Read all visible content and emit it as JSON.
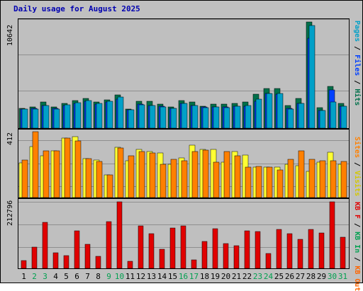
{
  "title": "Daily usage for August 2025",
  "colors": {
    "pages": "#00a0c8",
    "files": "#0040ff",
    "hits": "#00704a",
    "visits": "#ffff33",
    "sites": "#ff8000",
    "kb_in": "#00a050",
    "kb_out": "#ff6600",
    "kb_f": "#e00000",
    "weekend_label": "#00a050",
    "weekday_label": "#000000"
  },
  "legends": {
    "top": [
      "Pages",
      "Files",
      "Hits"
    ],
    "mid": [
      "Sites",
      "Visits"
    ],
    "bot": [
      "KB F",
      "KB In",
      "KB Out"
    ]
  },
  "chart_data": [
    {
      "type": "bar",
      "name": "hits-files-pages",
      "y_max_label": "10642",
      "ylim": [
        0,
        10642
      ],
      "categories": [
        "1",
        "2",
        "3",
        "4",
        "5",
        "6",
        "7",
        "8",
        "9",
        "10",
        "11",
        "12",
        "13",
        "14",
        "15",
        "16",
        "17",
        "18",
        "19",
        "20",
        "21",
        "22",
        "23",
        "24",
        "25",
        "26",
        "27",
        "28",
        "29",
        "30",
        "31"
      ],
      "weekend_days": [
        "2",
        "3",
        "9",
        "10",
        "16",
        "17",
        "23",
        "24",
        "30",
        "31"
      ],
      "series": [
        {
          "name": "Hits",
          "values": [
            1980,
            2100,
            2650,
            2150,
            2450,
            2800,
            2950,
            2600,
            2850,
            3350,
            1950,
            2700,
            2700,
            2400,
            2150,
            2800,
            2600,
            2200,
            2400,
            2400,
            2500,
            2650,
            3400,
            3950,
            3950,
            2300,
            2950,
            10642,
            2050,
            4200,
            2450
          ]
        },
        {
          "name": "Files",
          "values": [
            1900,
            2000,
            2300,
            2000,
            2300,
            2500,
            2700,
            2400,
            2600,
            2900,
            1850,
            2400,
            2300,
            2200,
            2000,
            2500,
            2300,
            2100,
            2100,
            2100,
            2200,
            2200,
            2700,
            3500,
            3400,
            2000,
            2500,
            9000,
            1800,
            3800,
            2200
          ]
        },
        {
          "name": "Pages",
          "values": [
            1900,
            1950,
            2300,
            1950,
            2350,
            2550,
            2800,
            2450,
            2700,
            3100,
            1850,
            2350,
            2300,
            2150,
            2000,
            2450,
            2300,
            2050,
            2100,
            2050,
            2200,
            2250,
            2900,
            3500,
            3500,
            1900,
            2500,
            10300,
            1750,
            2650,
            2200
          ]
        }
      ]
    },
    {
      "type": "bar",
      "name": "visits-sites",
      "y_max_label": "412",
      "ylim": [
        0,
        412
      ],
      "categories": [
        "1",
        "2",
        "3",
        "4",
        "5",
        "6",
        "7",
        "8",
        "9",
        "10",
        "11",
        "12",
        "13",
        "14",
        "15",
        "16",
        "17",
        "18",
        "19",
        "20",
        "21",
        "22",
        "23",
        "24",
        "25",
        "26",
        "27",
        "28",
        "29",
        "30",
        "31"
      ],
      "series": [
        {
          "name": "Visits",
          "values": [
            215,
            320,
            262,
            292,
            370,
            382,
            243,
            235,
            140,
            315,
            232,
            300,
            287,
            278,
            207,
            248,
            330,
            302,
            300,
            220,
            290,
            268,
            190,
            190,
            190,
            208,
            198,
            163,
            220,
            285,
            208
          ]
        },
        {
          "name": "Sites",
          "values": [
            237,
            412,
            292,
            292,
            370,
            353,
            243,
            228,
            140,
            312,
            260,
            290,
            280,
            208,
            238,
            232,
            290,
            298,
            222,
            290,
            260,
            190,
            193,
            190,
            173,
            240,
            292,
            240,
            232,
            232,
            225
          ]
        }
      ]
    },
    {
      "type": "bar",
      "name": "kbytes",
      "y_max_label": "212796",
      "ylim": [
        0,
        212796
      ],
      "categories": [
        "1",
        "2",
        "3",
        "4",
        "5",
        "6",
        "7",
        "8",
        "9",
        "10",
        "11",
        "12",
        "13",
        "14",
        "15",
        "16",
        "17",
        "18",
        "19",
        "20",
        "21",
        "22",
        "23",
        "24",
        "25",
        "26",
        "27",
        "28",
        "29",
        "30",
        "31"
      ],
      "series": [
        {
          "name": "KB F",
          "values": [
            25000,
            67000,
            147000,
            50000,
            40000,
            120000,
            76000,
            39000,
            150000,
            212796,
            22000,
            136000,
            111000,
            60000,
            130000,
            136000,
            27000,
            85000,
            127000,
            80000,
            73000,
            121000,
            118000,
            48000,
            125000,
            112000,
            93000,
            124000,
            114000,
            212796,
            99000
          ]
        }
      ]
    }
  ]
}
